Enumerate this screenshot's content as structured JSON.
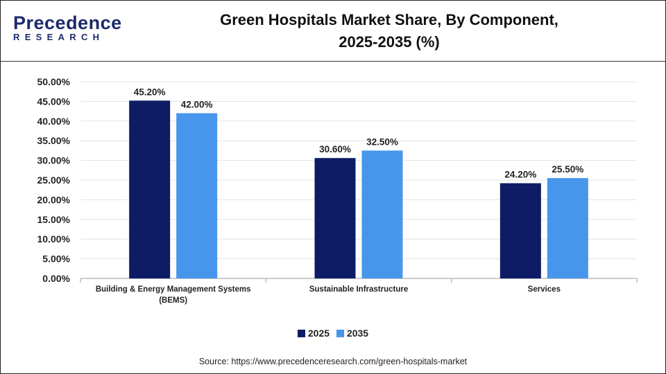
{
  "logo": {
    "line1": "Precedence",
    "line2": "RESEARCH"
  },
  "source": "Source: https://www.precedenceresearch.com/green-hospitals-market",
  "chart_data": {
    "type": "bar",
    "title": "Green Hospitals Market Share, By Component, 2025-2035 (%)",
    "title_lines": [
      "Green Hospitals Market Share, By Component,",
      "2025-2035 (%)"
    ],
    "categories": [
      "Building & Energy Management Systems (BEMS)",
      "Sustainable Infrastructure",
      "Services"
    ],
    "category_lines": [
      [
        "Building & Energy Management Systems",
        "(BEMS)"
      ],
      [
        "Sustainable Infrastructure"
      ],
      [
        "Services"
      ]
    ],
    "series": [
      {
        "name": "2025",
        "color": "#0d1c64",
        "values": [
          45.2,
          30.6,
          24.2
        ],
        "labels": [
          "45.20%",
          "30.60%",
          "24.20%"
        ]
      },
      {
        "name": "2035",
        "color": "#4796ec",
        "values": [
          42.0,
          32.5,
          25.5
        ],
        "labels": [
          "42.00%",
          "32.50%",
          "25.50%"
        ]
      }
    ],
    "ylim": [
      0,
      50
    ],
    "yticks": [
      "0.00%",
      "5.00%",
      "10.00%",
      "15.00%",
      "20.00%",
      "25.00%",
      "30.00%",
      "35.00%",
      "40.00%",
      "45.00%",
      "50.00%"
    ],
    "grid": true,
    "legend": "bottom"
  }
}
